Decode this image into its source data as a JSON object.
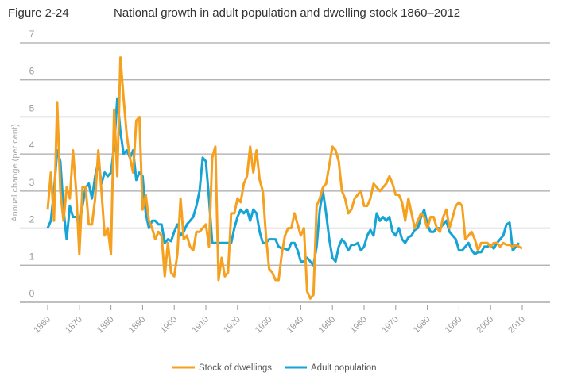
{
  "figure_label": "Figure 2-24",
  "chart_data": {
    "type": "line",
    "title": "National growth in adult population and dwelling stock 1860–2012",
    "xlabel": "",
    "ylabel": "Annual change (per cent)",
    "xlim": [
      1860,
      2010
    ],
    "ylim": [
      0,
      7
    ],
    "xticks": [
      "1860",
      "1870",
      "1880",
      "1890",
      "1900",
      "1910",
      "1920",
      "1930",
      "1940",
      "1950",
      "1960",
      "1970",
      "1980",
      "1990",
      "2000",
      "2010"
    ],
    "yticks": [
      "0",
      "1",
      "2",
      "3",
      "4",
      "5",
      "6",
      "7"
    ],
    "grid": true,
    "legend_position": "bottom",
    "colors": {
      "dwellings": "#f5a01e",
      "population": "#16a3d6"
    },
    "series": [
      {
        "name": "Stock of dwellings",
        "color": "#f5a01e",
        "values": [
          [
            1860,
            2.5
          ],
          [
            1861,
            3.5
          ],
          [
            1862,
            2.2
          ],
          [
            1863,
            5.4
          ],
          [
            1864,
            3.0
          ],
          [
            1865,
            2.2
          ],
          [
            1866,
            3.1
          ],
          [
            1867,
            2.8
          ],
          [
            1868,
            4.1
          ],
          [
            1869,
            3.0
          ],
          [
            1870,
            1.3
          ],
          [
            1871,
            3.1
          ],
          [
            1872,
            3.1
          ],
          [
            1873,
            2.1
          ],
          [
            1874,
            2.1
          ],
          [
            1875,
            2.8
          ],
          [
            1876,
            4.1
          ],
          [
            1877,
            3.0
          ],
          [
            1878,
            1.8
          ],
          [
            1879,
            2.0
          ],
          [
            1880,
            1.3
          ],
          [
            1881,
            5.2
          ],
          [
            1882,
            3.4
          ],
          [
            1883,
            6.6
          ],
          [
            1884,
            5.5
          ],
          [
            1885,
            4.5
          ],
          [
            1886,
            3.9
          ],
          [
            1887,
            3.5
          ],
          [
            1888,
            4.9
          ],
          [
            1889,
            5.0
          ],
          [
            1890,
            2.5
          ],
          [
            1891,
            2.9
          ],
          [
            1892,
            2.2
          ],
          [
            1893,
            2.0
          ],
          [
            1894,
            1.7
          ],
          [
            1895,
            1.9
          ],
          [
            1896,
            1.8
          ],
          [
            1897,
            0.7
          ],
          [
            1898,
            1.6
          ],
          [
            1899,
            0.8
          ],
          [
            1900,
            0.7
          ],
          [
            1901,
            1.3
          ],
          [
            1902,
            2.8
          ],
          [
            1903,
            1.7
          ],
          [
            1904,
            1.8
          ],
          [
            1905,
            1.5
          ],
          [
            1906,
            1.4
          ],
          [
            1907,
            1.9
          ],
          [
            1908,
            1.9
          ],
          [
            1909,
            2.0
          ],
          [
            1910,
            2.1
          ],
          [
            1911,
            1.5
          ],
          [
            1912,
            3.9
          ],
          [
            1913,
            4.2
          ],
          [
            1914,
            0.6
          ],
          [
            1915,
            1.2
          ],
          [
            1916,
            0.7
          ],
          [
            1917,
            0.8
          ],
          [
            1918,
            2.4
          ],
          [
            1919,
            2.4
          ],
          [
            1920,
            2.8
          ],
          [
            1921,
            2.7
          ],
          [
            1922,
            3.2
          ],
          [
            1923,
            3.4
          ],
          [
            1924,
            4.2
          ],
          [
            1925,
            3.5
          ],
          [
            1926,
            4.1
          ],
          [
            1927,
            3.3
          ],
          [
            1928,
            3.0
          ],
          [
            1929,
            1.8
          ],
          [
            1930,
            0.9
          ],
          [
            1931,
            0.8
          ],
          [
            1932,
            0.6
          ],
          [
            1933,
            0.6
          ],
          [
            1934,
            1.3
          ],
          [
            1935,
            1.8
          ],
          [
            1936,
            2.0
          ],
          [
            1937,
            2.0
          ],
          [
            1938,
            2.4
          ],
          [
            1939,
            2.1
          ],
          [
            1940,
            1.8
          ],
          [
            1941,
            2.0
          ],
          [
            1942,
            0.3
          ],
          [
            1943,
            0.1
          ],
          [
            1944,
            0.2
          ],
          [
            1945,
            2.6
          ],
          [
            1946,
            2.8
          ],
          [
            1947,
            3.1
          ],
          [
            1948,
            3.2
          ],
          [
            1949,
            3.7
          ],
          [
            1950,
            4.2
          ],
          [
            1951,
            4.1
          ],
          [
            1952,
            3.8
          ],
          [
            1953,
            3.0
          ],
          [
            1954,
            2.8
          ],
          [
            1955,
            2.4
          ],
          [
            1956,
            2.5
          ],
          [
            1957,
            2.8
          ],
          [
            1958,
            2.9
          ],
          [
            1959,
            3.0
          ],
          [
            1960,
            2.6
          ],
          [
            1961,
            2.6
          ],
          [
            1962,
            2.8
          ],
          [
            1963,
            3.2
          ],
          [
            1964,
            3.1
          ],
          [
            1965,
            3.0
          ],
          [
            1966,
            3.1
          ],
          [
            1967,
            3.2
          ],
          [
            1968,
            3.4
          ],
          [
            1969,
            3.2
          ],
          [
            1970,
            2.9
          ],
          [
            1971,
            2.9
          ],
          [
            1972,
            2.7
          ],
          [
            1973,
            2.2
          ],
          [
            1974,
            2.8
          ],
          [
            1975,
            2.4
          ],
          [
            1976,
            2.0
          ],
          [
            1977,
            2.2
          ],
          [
            1978,
            2.4
          ],
          [
            1979,
            2.3
          ],
          [
            1980,
            2.0
          ],
          [
            1981,
            2.3
          ],
          [
            1982,
            2.3
          ],
          [
            1983,
            2.0
          ],
          [
            1984,
            1.9
          ],
          [
            1985,
            2.3
          ],
          [
            1986,
            2.5
          ],
          [
            1987,
            2.0
          ],
          [
            1988,
            2.3
          ],
          [
            1989,
            2.6
          ],
          [
            1990,
            2.7
          ],
          [
            1991,
            2.6
          ],
          [
            1992,
            1.7
          ],
          [
            1993,
            1.8
          ],
          [
            1994,
            1.9
          ],
          [
            1995,
            1.7
          ],
          [
            1996,
            1.4
          ],
          [
            1997,
            1.6
          ],
          [
            1998,
            1.6
          ],
          [
            1999,
            1.6
          ],
          [
            2000,
            1.5
          ],
          [
            2001,
            1.6
          ],
          [
            2002,
            1.6
          ],
          [
            2003,
            1.5
          ],
          [
            2004,
            1.6
          ],
          [
            2005,
            1.55
          ],
          [
            2006,
            1.55
          ],
          [
            2007,
            1.5
          ],
          [
            2008,
            1.55
          ],
          [
            2009,
            1.5
          ],
          [
            2010,
            1.45
          ]
        ]
      },
      {
        "name": "Adult population",
        "color": "#16a3d6",
        "values": [
          [
            1860,
            2.0
          ],
          [
            1861,
            2.2
          ],
          [
            1862,
            3.0
          ],
          [
            1863,
            4.1
          ],
          [
            1864,
            3.8
          ],
          [
            1865,
            2.5
          ],
          [
            1866,
            1.7
          ],
          [
            1867,
            2.6
          ],
          [
            1868,
            2.3
          ],
          [
            1869,
            2.3
          ],
          [
            1870,
            2.1
          ],
          [
            1871,
            2.6
          ],
          [
            1872,
            3.1
          ],
          [
            1873,
            3.2
          ],
          [
            1874,
            2.8
          ],
          [
            1875,
            3.4
          ],
          [
            1876,
            3.8
          ],
          [
            1877,
            3.2
          ],
          [
            1878,
            3.5
          ],
          [
            1879,
            3.4
          ],
          [
            1880,
            3.5
          ],
          [
            1881,
            4.2
          ],
          [
            1882,
            5.5
          ],
          [
            1883,
            4.6
          ],
          [
            1884,
            4.0
          ],
          [
            1885,
            4.1
          ],
          [
            1886,
            3.9
          ],
          [
            1887,
            4.1
          ],
          [
            1888,
            3.3
          ],
          [
            1889,
            3.5
          ],
          [
            1890,
            3.4
          ],
          [
            1891,
            2.4
          ],
          [
            1892,
            2.0
          ],
          [
            1893,
            2.2
          ],
          [
            1894,
            2.2
          ],
          [
            1895,
            2.1
          ],
          [
            1896,
            2.1
          ],
          [
            1897,
            1.6
          ],
          [
            1898,
            1.7
          ],
          [
            1899,
            1.65
          ],
          [
            1900,
            1.9
          ],
          [
            1901,
            2.1
          ],
          [
            1902,
            1.8
          ],
          [
            1903,
            1.9
          ],
          [
            1904,
            2.1
          ],
          [
            1905,
            2.2
          ],
          [
            1906,
            2.3
          ],
          [
            1907,
            2.6
          ],
          [
            1908,
            3.0
          ],
          [
            1909,
            3.9
          ],
          [
            1910,
            3.8
          ],
          [
            1911,
            2.8
          ],
          [
            1912,
            1.6
          ],
          [
            1913,
            1.6
          ],
          [
            1914,
            1.6
          ],
          [
            1915,
            1.6
          ],
          [
            1916,
            1.6
          ],
          [
            1917,
            1.6
          ],
          [
            1918,
            1.6
          ],
          [
            1919,
            2.0
          ],
          [
            1920,
            2.3
          ],
          [
            1921,
            2.5
          ],
          [
            1922,
            2.4
          ],
          [
            1923,
            2.5
          ],
          [
            1924,
            2.2
          ],
          [
            1925,
            2.5
          ],
          [
            1926,
            2.4
          ],
          [
            1927,
            1.9
          ],
          [
            1928,
            1.6
          ],
          [
            1929,
            1.6
          ],
          [
            1930,
            1.7
          ],
          [
            1931,
            1.7
          ],
          [
            1932,
            1.7
          ],
          [
            1933,
            1.5
          ],
          [
            1934,
            1.45
          ],
          [
            1935,
            1.45
          ],
          [
            1936,
            1.4
          ],
          [
            1937,
            1.6
          ],
          [
            1938,
            1.6
          ],
          [
            1939,
            1.4
          ],
          [
            1940,
            1.1
          ],
          [
            1941,
            1.1
          ],
          [
            1942,
            1.2
          ],
          [
            1943,
            1.1
          ],
          [
            1944,
            1.0
          ],
          [
            1945,
            1.5
          ],
          [
            1946,
            2.5
          ],
          [
            1947,
            3.0
          ],
          [
            1948,
            2.4
          ],
          [
            1949,
            1.7
          ],
          [
            1950,
            1.2
          ],
          [
            1951,
            1.1
          ],
          [
            1952,
            1.5
          ],
          [
            1953,
            1.7
          ],
          [
            1954,
            1.6
          ],
          [
            1955,
            1.4
          ],
          [
            1956,
            1.55
          ],
          [
            1957,
            1.55
          ],
          [
            1958,
            1.6
          ],
          [
            1959,
            1.4
          ],
          [
            1960,
            1.5
          ],
          [
            1961,
            1.8
          ],
          [
            1962,
            1.95
          ],
          [
            1963,
            1.8
          ],
          [
            1964,
            2.4
          ],
          [
            1965,
            2.2
          ],
          [
            1966,
            2.3
          ],
          [
            1967,
            2.2
          ],
          [
            1968,
            2.3
          ],
          [
            1969,
            1.9
          ],
          [
            1970,
            1.8
          ],
          [
            1971,
            2.0
          ],
          [
            1972,
            1.7
          ],
          [
            1973,
            1.6
          ],
          [
            1974,
            1.75
          ],
          [
            1975,
            1.8
          ],
          [
            1976,
            1.95
          ],
          [
            1977,
            2.0
          ],
          [
            1978,
            2.3
          ],
          [
            1979,
            2.5
          ],
          [
            1980,
            2.1
          ],
          [
            1981,
            1.9
          ],
          [
            1982,
            1.9
          ],
          [
            1983,
            2.0
          ],
          [
            1984,
            2.0
          ],
          [
            1985,
            2.1
          ],
          [
            1986,
            2.2
          ],
          [
            1987,
            1.9
          ],
          [
            1988,
            1.8
          ],
          [
            1989,
            1.7
          ],
          [
            1990,
            1.4
          ],
          [
            1991,
            1.4
          ],
          [
            1992,
            1.5
          ],
          [
            1993,
            1.6
          ],
          [
            1994,
            1.4
          ],
          [
            1995,
            1.3
          ],
          [
            1996,
            1.35
          ],
          [
            1997,
            1.35
          ],
          [
            1998,
            1.5
          ],
          [
            1999,
            1.5
          ],
          [
            2000,
            1.55
          ],
          [
            2001,
            1.45
          ],
          [
            2002,
            1.6
          ],
          [
            2003,
            1.7
          ],
          [
            2004,
            1.8
          ],
          [
            2005,
            2.1
          ],
          [
            2006,
            2.15
          ],
          [
            2007,
            1.4
          ],
          [
            2008,
            1.5
          ],
          [
            2009,
            1.6
          ]
        ]
      }
    ]
  }
}
